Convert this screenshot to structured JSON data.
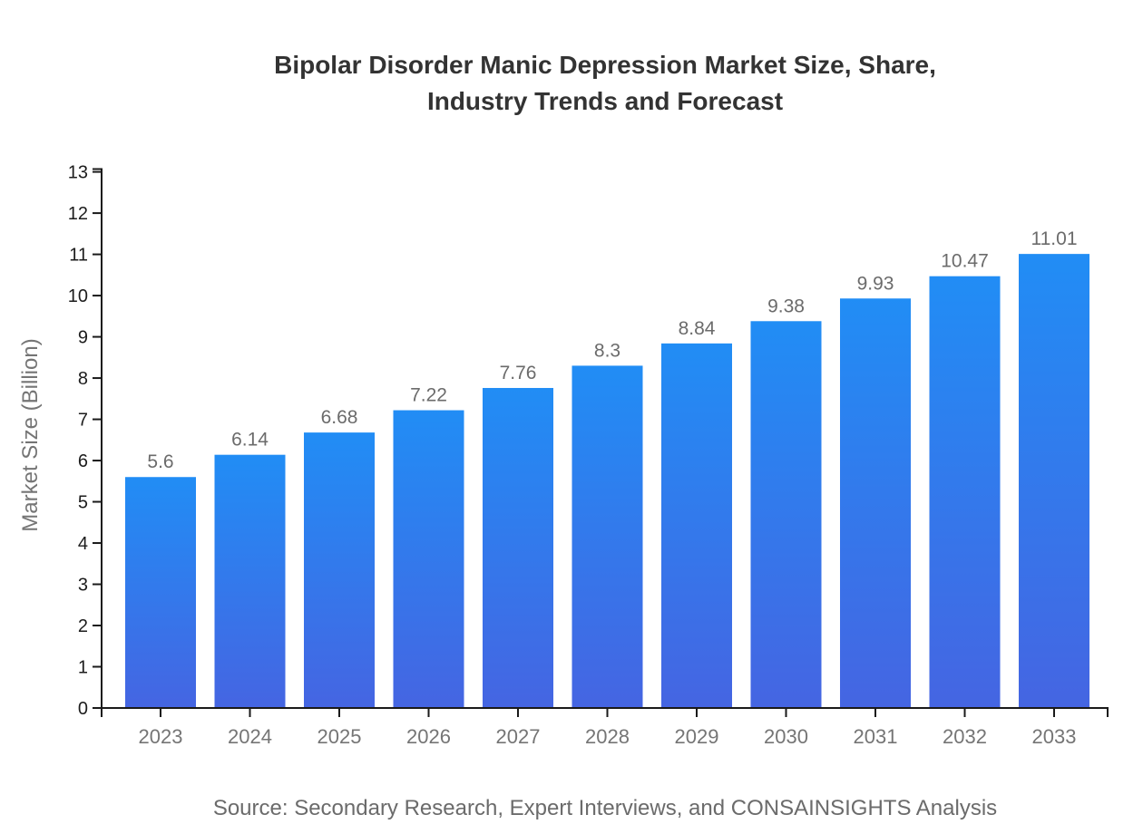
{
  "title": {
    "line1": "Bipolar Disorder Manic Depression Market Size, Share,",
    "line2": "Industry Trends and Forecast"
  },
  "chart_data": {
    "type": "bar",
    "title": "Bipolar Disorder Manic Depression Market Size, Share, Industry Trends and Forecast",
    "categories": [
      "2023",
      "2024",
      "2025",
      "2026",
      "2027",
      "2028",
      "2029",
      "2030",
      "2031",
      "2032",
      "2033"
    ],
    "values": [
      5.6,
      6.14,
      6.68,
      7.22,
      7.76,
      8.3,
      8.84,
      9.38,
      9.93,
      10.47,
      11.01
    ],
    "value_labels": [
      "5.6",
      "6.14",
      "6.68",
      "7.22",
      "7.76",
      "8.3",
      "8.84",
      "9.38",
      "9.93",
      "10.47",
      "11.01"
    ],
    "xlabel": "",
    "ylabel": "Market Size (Billion)",
    "ylim": [
      0,
      13
    ],
    "ytick_step": 1,
    "ytick_labels": [
      "0",
      "1",
      "2",
      "3",
      "4",
      "5",
      "6",
      "7",
      "8",
      "9",
      "10",
      "11",
      "12",
      "13"
    ],
    "grid": false,
    "legend": "none",
    "bar_label_position": "above"
  },
  "footer": {
    "source": "Source: Secondary Research, Expert Interviews, and CONSAINSIGHTS Analysis"
  },
  "colors": {
    "background": "#ffffff",
    "bar_gradient_top": "#218df5",
    "bar_gradient_bottom": "#4565e2",
    "axis": "#1a1a1a",
    "ytick_label": "#1c1c1c",
    "xcategory_label": "#757575",
    "value_label": "#6b6b6b",
    "title": "#333333",
    "ylabel": "#757575",
    "source": "#6b6b6b"
  }
}
